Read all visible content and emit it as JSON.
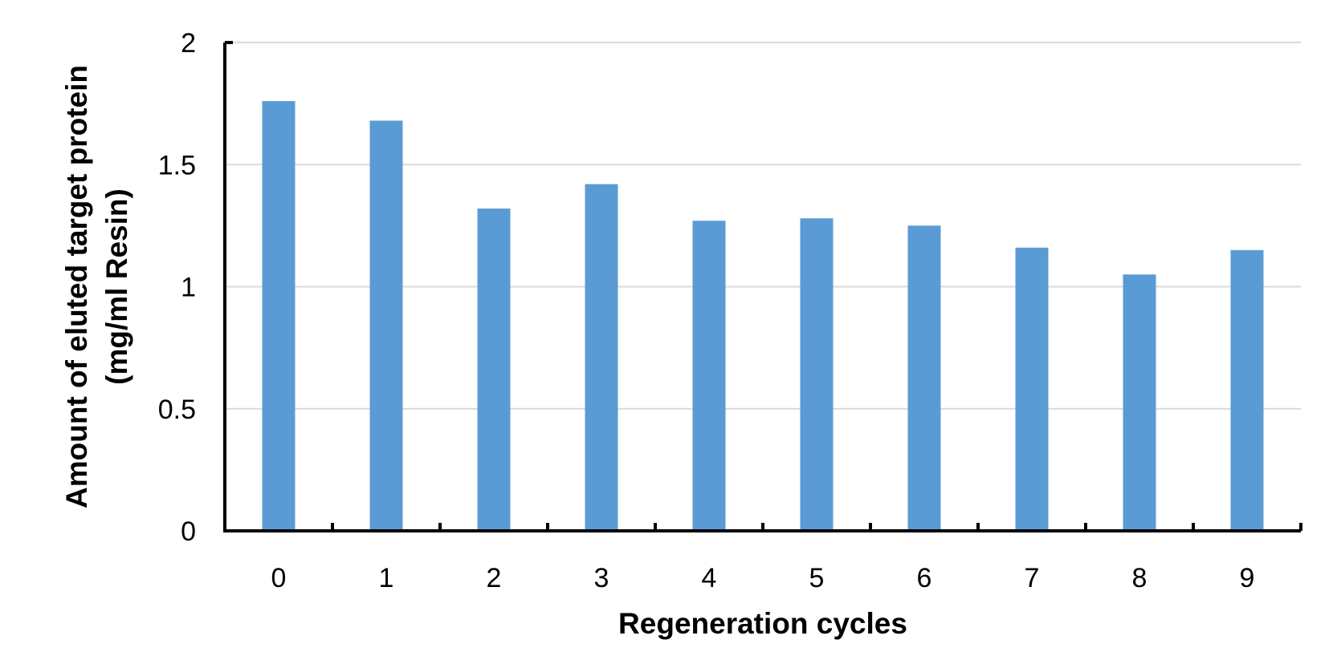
{
  "chart_data": {
    "type": "bar",
    "title": "",
    "xlabel": "Regeneration cycles",
    "ylabel": "Amount of eluted target protein",
    "ylabel_line2": "(mg/ml Resin)",
    "categories": [
      "0",
      "1",
      "2",
      "3",
      "4",
      "5",
      "6",
      "7",
      "8",
      "9"
    ],
    "values": [
      1.76,
      1.68,
      1.32,
      1.42,
      1.27,
      1.28,
      1.25,
      1.16,
      1.05,
      1.15
    ],
    "ylim": [
      0,
      2
    ],
    "yticks": [
      0,
      0.5,
      1,
      1.5,
      2
    ],
    "ytick_labels": [
      "0",
      "0.5",
      "1",
      "1.5",
      "2"
    ],
    "grid": true,
    "bar_color": "#5b9bd5",
    "grid_color": "#d9d9d9",
    "axis_color": "#000000"
  }
}
